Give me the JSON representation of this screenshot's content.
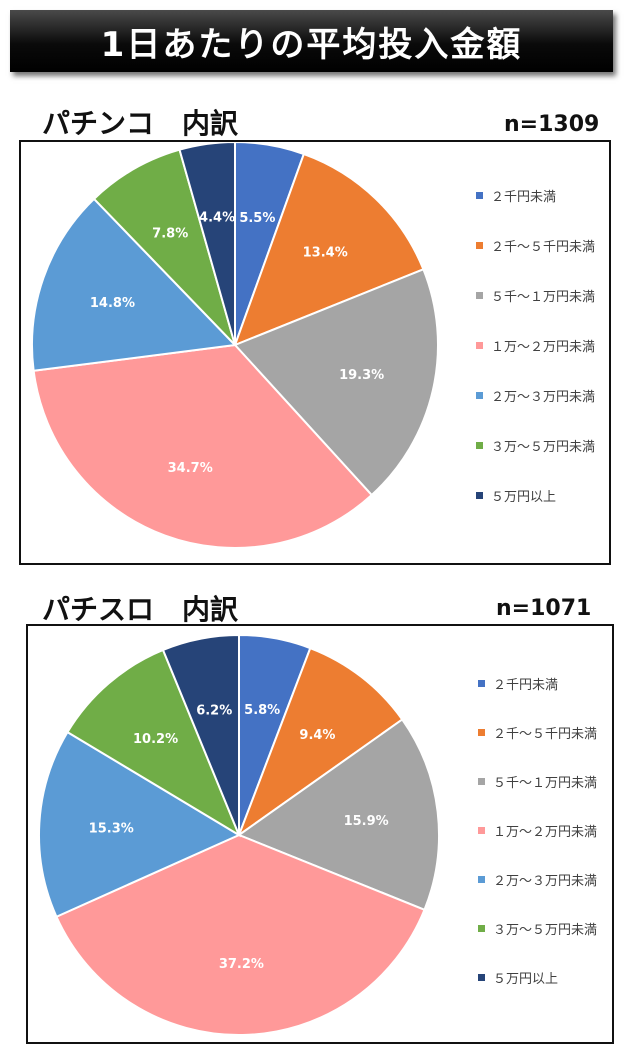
{
  "header": {
    "title": "1日あたりの平均投入金額"
  },
  "colors": {
    "c1": "#4472C4",
    "c2": "#ED7D31",
    "c3": "#A5A5A5",
    "c4": "#FF9999",
    "c5": "#5B9BD5",
    "c6": "#70AD47",
    "c7": "#264478"
  },
  "sections": [
    {
      "title": "パチンコ　内訳",
      "n_label": "n=1309"
    },
    {
      "title": "パチスロ　内訳",
      "n_label": "n=1071"
    }
  ],
  "chart_data": [
    {
      "type": "pie",
      "title": "パチンコ　内訳",
      "categories": [
        "２千円未満",
        "２千～５千円未満",
        "５千～１万円未満",
        "１万～２万円未満",
        "２万～３万円未満",
        "３万～５万円未満",
        "５万円以上"
      ],
      "values": [
        5.5,
        13.4,
        19.3,
        34.7,
        14.8,
        7.8,
        4.4
      ],
      "data_labels": [
        "5.5%",
        "13.4%",
        "19.3%",
        "34.7%",
        "14.8%",
        "7.8%",
        "4.4%"
      ],
      "colors": [
        "#4472C4",
        "#ED7D31",
        "#A5A5A5",
        "#FF9999",
        "#5B9BD5",
        "#70AD47",
        "#264478"
      ],
      "legend": "right"
    },
    {
      "type": "pie",
      "title": "パチスロ　内訳",
      "categories": [
        "２千円未満",
        "２千～５千円未満",
        "５千～１万円未満",
        "１万～２万円未満",
        "２万～３万円未満",
        "３万～５万円未満",
        "５万円以上"
      ],
      "values": [
        5.8,
        9.4,
        15.9,
        37.2,
        15.3,
        10.2,
        6.2
      ],
      "data_labels": [
        "5.8%",
        "9.4%",
        "15.9%",
        "37.2%",
        "15.3%",
        "10.2%",
        "6.2%"
      ],
      "colors": [
        "#4472C4",
        "#ED7D31",
        "#A5A5A5",
        "#FF9999",
        "#5B9BD5",
        "#70AD47",
        "#264478"
      ],
      "legend": "right"
    }
  ]
}
